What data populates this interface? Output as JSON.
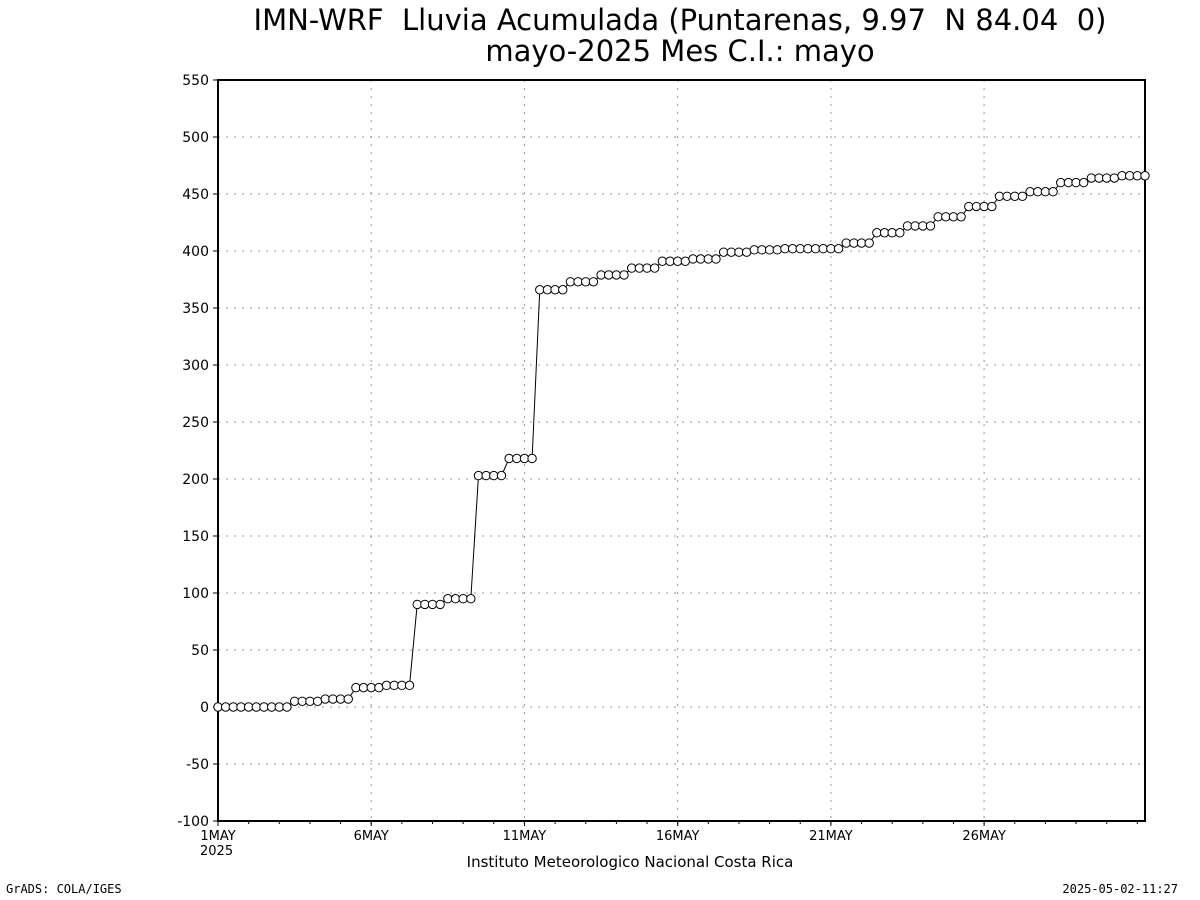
{
  "header": {
    "title_line1": "IMN-WRF  Lluvia Acumulada (Puntarenas, 9.97  N 84.04  0)",
    "title_line2": "mayo-2025 Mes C.I.: mayo"
  },
  "footer": {
    "institute": "Instituto Meteorologico Nacional Costa Rica",
    "credit": "GrADS: COLA/IGES",
    "timestamp": "2025-05-02-11:27",
    "year_label": "2025"
  },
  "chart_data": {
    "type": "line",
    "title": "IMN-WRF  Lluvia Acumulada (Puntarenas, 9.97  N 84.04  0)",
    "subtitle": "mayo-2025 Mes C.I.: mayo",
    "xlabel": "",
    "ylabel": "",
    "ylim": [
      -100,
      550
    ],
    "yticks": [
      -100,
      -50,
      0,
      50,
      100,
      150,
      200,
      250,
      300,
      350,
      400,
      450,
      500,
      550
    ],
    "x_unit": "day of May 2025 (1.0 = 1MAY 00Z, 6-hourly steps)",
    "xlim": [
      1,
      31.25
    ],
    "xticks": [
      {
        "value": 1,
        "label": "1MAY"
      },
      {
        "value": 6,
        "label": "6MAY"
      },
      {
        "value": 11,
        "label": "11MAY"
      },
      {
        "value": 16,
        "label": "16MAY"
      },
      {
        "value": 21,
        "label": "21MAY"
      },
      {
        "value": 26,
        "label": "26MAY"
      }
    ],
    "grid": true,
    "line_color": "#000000",
    "marker": "open-circle",
    "series": [
      {
        "x_start": 1,
        "x_step": 0.25,
        "values": [
          0,
          0,
          0,
          0,
          0,
          0,
          0,
          0,
          0,
          0,
          5,
          5,
          5,
          5,
          7,
          7,
          7,
          7,
          17,
          17,
          17,
          17,
          19,
          19,
          19,
          19,
          90,
          90,
          90,
          90,
          95,
          95,
          95,
          95,
          203,
          203,
          203,
          203,
          218,
          218,
          218,
          218,
          366,
          366,
          366,
          366,
          373,
          373,
          373,
          373,
          379,
          379,
          379,
          379,
          385,
          385,
          385,
          385,
          391,
          391,
          391,
          391,
          393,
          393,
          393,
          393,
          399,
          399,
          399,
          399,
          401,
          401,
          401,
          401,
          402,
          402,
          402,
          402,
          402,
          402,
          402,
          402,
          407,
          407,
          407,
          407,
          416,
          416,
          416,
          416,
          422,
          422,
          422,
          422,
          430,
          430,
          430,
          430,
          439,
          439,
          439,
          439,
          448,
          448,
          448,
          448,
          452,
          452,
          452,
          452,
          460,
          460,
          460,
          460,
          464,
          464,
          464,
          464,
          466,
          466,
          466,
          466
        ]
      }
    ]
  }
}
